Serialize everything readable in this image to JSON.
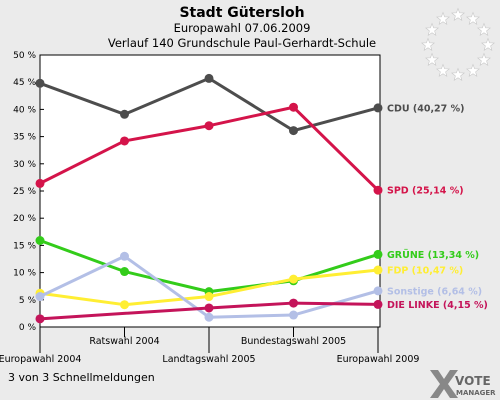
{
  "header": {
    "title": "Stadt Gütersloh",
    "subtitle1": "Europawahl 07.06.2009",
    "subtitle2": "Verlauf 140 Grundschule Paul-Gerhardt-Schule"
  },
  "footer": {
    "status": "3 von 3 Schnellmeldungen"
  },
  "logo": {
    "text_top": "VOTE",
    "text_bottom": "MANAGER",
    "icon": "eu-stars-icon"
  },
  "chart_data": {
    "type": "line",
    "title": "Stadt Gütersloh",
    "subtitle": "Europawahl 07.06.2009 — Verlauf 140 Grundschule Paul-Gerhardt-Schule",
    "x": [
      "Europawahl 2004",
      "Ratswahl 2004",
      "Landtagswahl 2005",
      "Bundestagswahl 2005",
      "Europawahl 2009"
    ],
    "ylim": [
      0,
      50
    ],
    "ytick_labels": [
      "0 %",
      "5 %",
      "10 %",
      "15 %",
      "20 %",
      "25 %",
      "30 %",
      "35 %",
      "40 %",
      "45 %",
      "50 %"
    ],
    "grid": false,
    "series": [
      {
        "name": "CDU",
        "label": "CDU (40,27 %)",
        "color": "#4d4d4d",
        "values": [
          44.8,
          39.1,
          45.7,
          36.1,
          40.27
        ]
      },
      {
        "name": "SPD",
        "label": "SPD (25,14 %)",
        "color": "#d4144a",
        "values": [
          26.4,
          34.2,
          37.0,
          40.4,
          25.14
        ]
      },
      {
        "name": "GRÜNE",
        "label": "GRÜNE (13,34 %)",
        "color": "#33cc1a",
        "values": [
          15.9,
          10.2,
          6.5,
          8.5,
          13.34
        ]
      },
      {
        "name": "FDP",
        "label": "FDP (10,47 %)",
        "color": "#ffee33",
        "values": [
          6.2,
          4.1,
          5.6,
          8.8,
          10.47
        ]
      },
      {
        "name": "Sonstige",
        "label": "Sonstige (6,64 %)",
        "color": "#b3bfe6",
        "values": [
          5.6,
          13.0,
          1.8,
          2.2,
          6.64
        ]
      },
      {
        "name": "DIE LINKE",
        "label": "DIE LINKE (4,15 %)",
        "color": "#c4145a",
        "values": [
          1.5,
          null,
          3.5,
          4.4,
          4.15
        ]
      }
    ]
  }
}
